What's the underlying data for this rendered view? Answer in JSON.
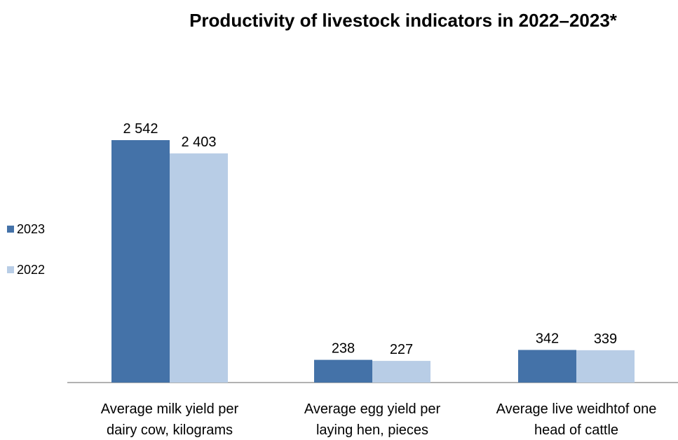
{
  "chart_data": {
    "type": "bar",
    "title": "Productivity of livestock indicators in 2022–2023*",
    "categories": [
      [
        "Average milk yield per",
        "dairy cow, kilograms"
      ],
      [
        "Average egg yield per",
        "laying hen, pieces"
      ],
      [
        "Average live weidhtof one",
        "head of cattle"
      ]
    ],
    "series": [
      {
        "name": "2023",
        "color": "#4472a8",
        "values": [
          2542,
          238,
          342
        ],
        "labels": [
          "2 542",
          "238",
          "342"
        ]
      },
      {
        "name": "2022",
        "color": "#b8cde6",
        "values": [
          2403,
          227,
          339
        ],
        "labels": [
          "2 403",
          "227",
          "339"
        ]
      }
    ],
    "ylim": [
      0,
      2542
    ],
    "legend": "left",
    "grid": false,
    "axis_color": "#999999"
  }
}
